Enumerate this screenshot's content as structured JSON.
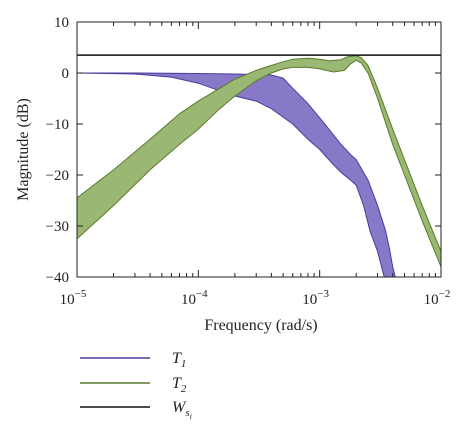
{
  "chart_data": {
    "type": "area",
    "xlabel": "Frequency (rad/s)",
    "ylabel": "Magnitude (dB)",
    "x_scale": "log",
    "xlim": [
      1e-05,
      0.01
    ],
    "ylim": [
      -40,
      10
    ],
    "x_ticks": [
      {
        "value": 1e-05,
        "base": "10",
        "exp": "−5"
      },
      {
        "value": 0.0001,
        "base": "10",
        "exp": "−4"
      },
      {
        "value": 0.001,
        "base": "10",
        "exp": "−3"
      },
      {
        "value": 0.01,
        "base": "10",
        "exp": "−2"
      }
    ],
    "y_ticks": [
      {
        "value": 10,
        "label": "10"
      },
      {
        "value": 0,
        "label": "0"
      },
      {
        "value": -10,
        "label": "−10"
      },
      {
        "value": -20,
        "label": "−20"
      },
      {
        "value": -30,
        "label": "−30"
      },
      {
        "value": -40,
        "label": "−40"
      }
    ],
    "grid": false,
    "legend_position": "bottom-left",
    "series": [
      {
        "name": "T1",
        "label_main": "T",
        "label_sub": "1",
        "color": "#4b3c9e",
        "fill": "#8878c8",
        "upper": [
          [
            1e-05,
            0
          ],
          [
            3e-05,
            0
          ],
          [
            0.0001,
            -0.1
          ],
          [
            0.0002,
            -0.2
          ],
          [
            0.0003,
            -0.3
          ],
          [
            0.0004,
            -0.4
          ],
          [
            0.0005,
            -1
          ],
          [
            0.0006,
            -3
          ],
          [
            0.0008,
            -6
          ],
          [
            0.0011,
            -10
          ],
          [
            0.0015,
            -14
          ],
          [
            0.0018,
            -16
          ],
          [
            0.002,
            -17
          ],
          [
            0.0025,
            -21
          ],
          [
            0.003,
            -26
          ],
          [
            0.0035,
            -31
          ],
          [
            0.0038,
            -35
          ],
          [
            0.004,
            -38
          ],
          [
            0.0042,
            -40
          ]
        ],
        "lower": [
          [
            1e-05,
            0
          ],
          [
            3e-05,
            -0.2
          ],
          [
            6e-05,
            -0.8
          ],
          [
            0.0001,
            -2
          ],
          [
            0.00015,
            -3.5
          ],
          [
            0.0002,
            -4.5
          ],
          [
            0.0003,
            -5.5
          ],
          [
            0.0004,
            -7
          ],
          [
            0.0006,
            -10
          ],
          [
            0.0008,
            -13
          ],
          [
            0.001,
            -15
          ],
          [
            0.0013,
            -18
          ],
          [
            0.0015,
            -19.5
          ],
          [
            0.0018,
            -21
          ],
          [
            0.002,
            -22
          ],
          [
            0.0023,
            -26
          ],
          [
            0.0026,
            -31
          ],
          [
            0.003,
            -35
          ],
          [
            0.0034,
            -40
          ]
        ]
      },
      {
        "name": "T2",
        "label_main": "T",
        "label_sub": "2",
        "color": "#5a7a2c",
        "fill": "#9ab873",
        "upper": [
          [
            1e-05,
            -24.5
          ],
          [
            2e-05,
            -19
          ],
          [
            4e-05,
            -13
          ],
          [
            7e-05,
            -8
          ],
          [
            0.0001,
            -5.5
          ],
          [
            0.00015,
            -3
          ],
          [
            0.0002,
            -1.2
          ],
          [
            0.0003,
            0.5
          ],
          [
            0.0004,
            1.5
          ],
          [
            0.0005,
            2.2
          ],
          [
            0.0006,
            2.7
          ],
          [
            0.0008,
            2.9
          ],
          [
            0.001,
            2.7
          ],
          [
            0.0012,
            2.4
          ],
          [
            0.0015,
            2.6
          ],
          [
            0.0017,
            3.2
          ],
          [
            0.002,
            3.4
          ],
          [
            0.0022,
            3.0
          ],
          [
            0.0025,
            1.5
          ],
          [
            0.003,
            -3
          ],
          [
            0.004,
            -11
          ],
          [
            0.005,
            -17
          ],
          [
            0.007,
            -26
          ],
          [
            0.01,
            -35
          ]
        ],
        "lower": [
          [
            1e-05,
            -32.5
          ],
          [
            2e-05,
            -26
          ],
          [
            4e-05,
            -19
          ],
          [
            7e-05,
            -14
          ],
          [
            0.0001,
            -11
          ],
          [
            0.00015,
            -7
          ],
          [
            0.0002,
            -4.5
          ],
          [
            0.0003,
            -1.5
          ],
          [
            0.0004,
            0
          ],
          [
            0.0005,
            0.8
          ],
          [
            0.0006,
            1.1
          ],
          [
            0.0008,
            1.1
          ],
          [
            0.001,
            0.8
          ],
          [
            0.0013,
            0.2
          ],
          [
            0.0016,
            0.5
          ],
          [
            0.0018,
            1.8
          ],
          [
            0.002,
            2.5
          ],
          [
            0.0022,
            2.0
          ],
          [
            0.0025,
            0
          ],
          [
            0.003,
            -5
          ],
          [
            0.004,
            -14
          ],
          [
            0.005,
            -20
          ],
          [
            0.007,
            -29
          ],
          [
            0.01,
            -38
          ]
        ]
      },
      {
        "name": "Ws_i",
        "label_main": "W",
        "label_sub": "s",
        "label_subsub": "i",
        "color": "#111111",
        "constant": 3.5
      }
    ]
  }
}
